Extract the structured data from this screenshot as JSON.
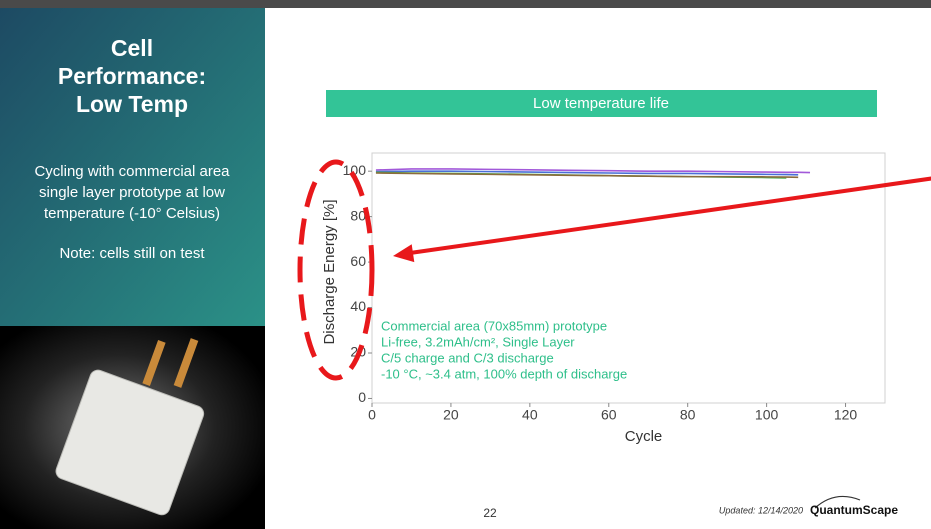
{
  "sidebar": {
    "title_lines": [
      "Cell",
      "Performance:",
      "Low Temp"
    ],
    "body_lines": [
      "Cycling with commercial area",
      "single layer prototype at low",
      "temperature (-10° Celsius)"
    ],
    "note": "Note: cells still on test"
  },
  "banner": "Low temperature life",
  "page_number": "22",
  "footer": {
    "updated": "Updated: 12/14/2020",
    "brand": "QuantumScape"
  },
  "chart_data": {
    "type": "line",
    "x_label": "Cycle",
    "y_label": "Discharge Energy [%]",
    "annotations": [
      "Commercial area (70x85mm) prototype",
      "Li-free, 3.2mAh/cm², Single Layer",
      "C/5 charge and C/3 discharge",
      "-10 °C, ~3.4 atm, 100% depth of discharge"
    ],
    "x": [
      1,
      10,
      20,
      30,
      40,
      50,
      60,
      70,
      80,
      90,
      100,
      105,
      108,
      111
    ],
    "series": [
      {
        "color": "#a259d9",
        "values": [
          100.5,
          101,
          101,
          100.8,
          100.6,
          100.4,
          100.2,
          100,
          100,
          99.8,
          99.6,
          99.5,
          99.5,
          99.4
        ]
      },
      {
        "color": "#4a6fd8",
        "values": [
          99.8,
          100,
          100,
          99.8,
          99.6,
          99.4,
          99.2,
          99,
          99,
          98.8,
          98.6,
          98.5,
          98.4,
          null
        ]
      },
      {
        "color": "#4caf50",
        "values": [
          99.5,
          99.2,
          99,
          98.8,
          98.6,
          98.3,
          98,
          97.8,
          97.6,
          97.4,
          97.2,
          97,
          null,
          null
        ]
      },
      {
        "color": "#8b6b3d",
        "values": [
          99.2,
          99,
          98.8,
          98.6,
          98.4,
          98.2,
          98,
          97.8,
          97.6,
          97.6,
          97.5,
          97.4,
          97.3,
          null
        ]
      }
    ],
    "xlim": [
      0,
      130
    ],
    "ylim": [
      -2,
      108
    ],
    "xticks": [
      0,
      20,
      40,
      60,
      80,
      100,
      120
    ],
    "yticks": [
      0,
      20,
      40,
      60,
      80,
      100
    ],
    "grid": false
  }
}
